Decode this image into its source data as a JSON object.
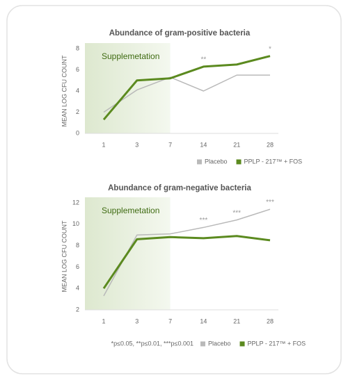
{
  "chart_data": [
    {
      "type": "line",
      "title": "Abundance of gram-positive bacteria",
      "y_label": "MEAN LOG CFU COUNT",
      "shaded_label": "Supplemetation",
      "categories": [
        "1",
        "3",
        "7",
        "14",
        "21",
        "28"
      ],
      "ylim": [
        0,
        8
      ],
      "yticks": [
        0,
        2,
        4,
        6,
        8
      ],
      "grid": false,
      "series": [
        {
          "name": "Placebo",
          "color": "#b9b9b9",
          "values": [
            2.0,
            4.1,
            5.3,
            4.0,
            5.5,
            5.5
          ]
        },
        {
          "name": "PPLP - 217™ + FOS",
          "color": "#5b8a1f",
          "values": [
            1.3,
            5.0,
            5.2,
            6.3,
            6.5,
            7.3
          ]
        }
      ],
      "annotations": [
        {
          "text": "**",
          "category": "14"
        },
        {
          "text": "*",
          "category": "28"
        }
      ]
    },
    {
      "type": "line",
      "title": "Abundance of gram-negative bacteria",
      "y_label": "MEAN LOG CFU COUNT",
      "shaded_label": "Supplemetation",
      "categories": [
        "1",
        "3",
        "7",
        "14",
        "21",
        "28"
      ],
      "ylim": [
        2,
        12
      ],
      "yticks": [
        2,
        4,
        6,
        8,
        10,
        12
      ],
      "grid": false,
      "series": [
        {
          "name": "Placebo",
          "color": "#b9b9b9",
          "values": [
            3.3,
            9.0,
            9.1,
            9.7,
            10.4,
            11.4
          ]
        },
        {
          "name": "PPLP - 217™ + FOS",
          "color": "#5b8a1f",
          "values": [
            4.0,
            8.6,
            8.8,
            8.7,
            8.9,
            8.5
          ]
        }
      ],
      "annotations": [
        {
          "text": "***",
          "category": "14"
        },
        {
          "text": "***",
          "category": "21"
        },
        {
          "text": "***",
          "category": "28"
        }
      ],
      "note": "*p≤0.05, **p≤0.01, ***p≤0.001"
    }
  ]
}
